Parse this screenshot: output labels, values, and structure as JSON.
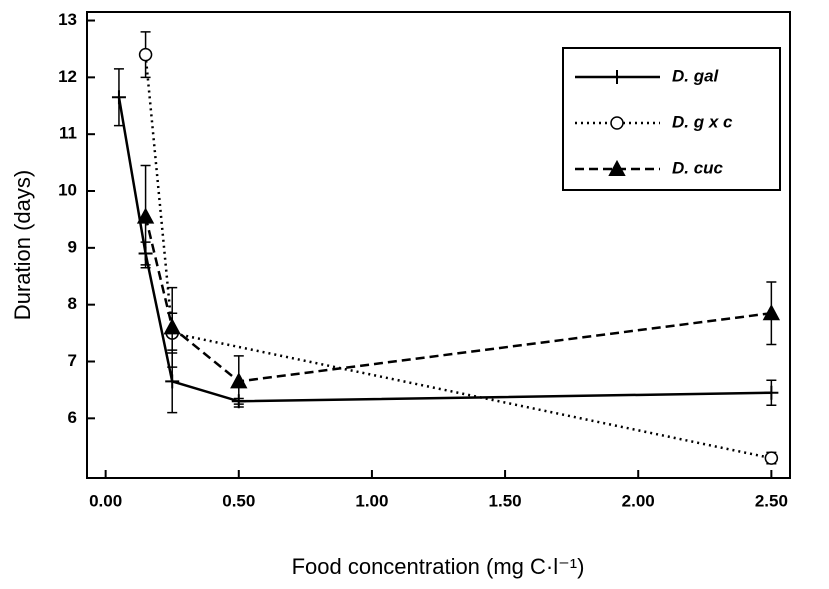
{
  "chart_data": {
    "type": "line",
    "x_label": "Food concentration (mg C·l⁻¹)",
    "y_label": "Duration (days)",
    "xlim": [
      -0.07,
      2.57
    ],
    "ylim": [
      4.95,
      13.15
    ],
    "xticks": [
      {
        "value": 0,
        "label": "0.00"
      },
      {
        "value": 0.5,
        "label": "0.50"
      },
      {
        "value": 1,
        "label": "1.00"
      },
      {
        "value": 1.5,
        "label": "1.50"
      },
      {
        "value": 2,
        "label": "2.00"
      },
      {
        "value": 2.5,
        "label": "2.50"
      }
    ],
    "yticks": [
      6,
      7,
      8,
      9,
      10,
      11,
      12,
      13
    ],
    "legend": "upper right",
    "series": [
      {
        "name": "D. gal",
        "color": "#000000",
        "line_style": "solid",
        "marker": "plus",
        "x": [
          0.05,
          0.15,
          0.25,
          0.5,
          2.5
        ],
        "values": [
          11.65,
          8.9,
          6.65,
          6.3,
          6.45
        ],
        "errors": [
          0.5,
          0.2,
          0.55,
          0.05,
          0.22
        ]
      },
      {
        "name": "D. g x c",
        "color": "#000000",
        "line_style": "dotted",
        "marker": "circle",
        "x": [
          0.15,
          0.25,
          2.5
        ],
        "values": [
          12.4,
          7.5,
          5.3
        ],
        "errors": [
          0.4,
          0.35,
          0.1
        ]
      },
      {
        "name": "D. cuc",
        "color": "#000000",
        "line_style": "dashed",
        "marker": "triangle",
        "x": [
          0.15,
          0.25,
          0.5,
          2.5
        ],
        "values": [
          9.55,
          7.6,
          6.65,
          7.85
        ],
        "errors": [
          0.9,
          0.7,
          0.45,
          0.55
        ]
      }
    ]
  }
}
